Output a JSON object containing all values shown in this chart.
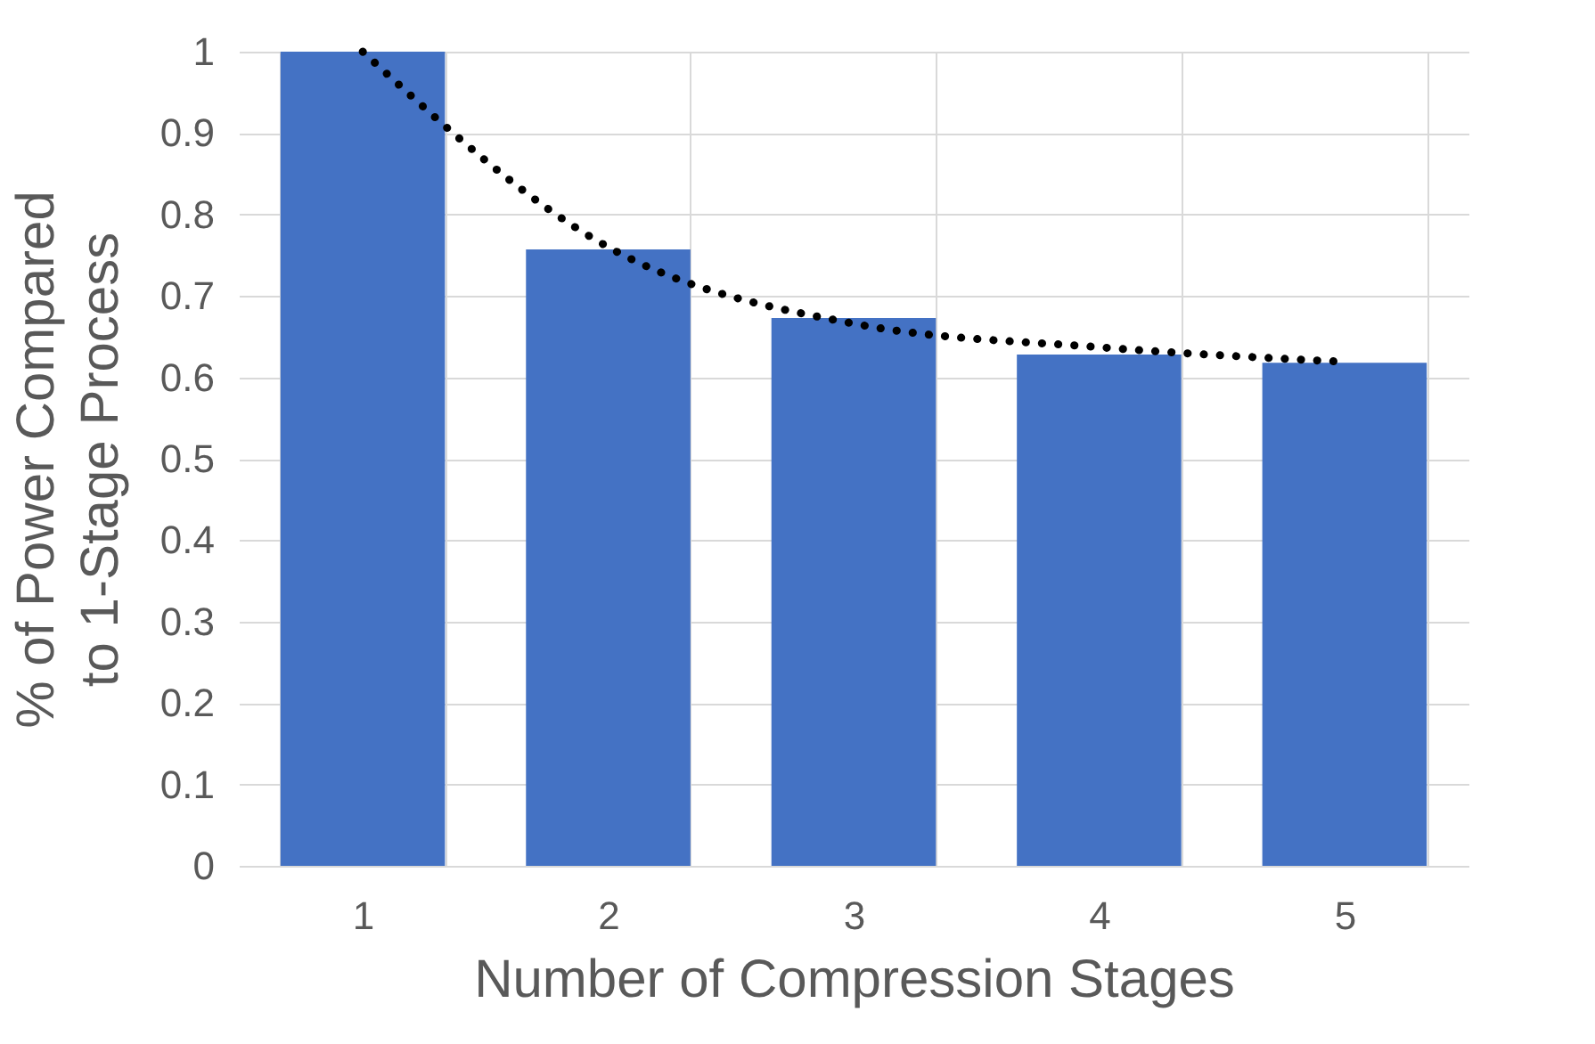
{
  "chart_data": {
    "type": "bar",
    "categories": [
      "1",
      "2",
      "3",
      "4",
      "5"
    ],
    "xlabel": "Number of Compression Stages",
    "ylabel": "% of  Power Compared\nto 1-Stage Process",
    "series": [
      {
        "color": "#4472c4",
        "values": [
          1,
          0.757,
          0.673,
          0.628,
          0.618
        ]
      },
      {
        "type": "line",
        "color": "#000000",
        "line_style": "dotted",
        "x": [
          "1",
          "2",
          "3",
          "4",
          "5"
        ],
        "values": [
          1,
          0.76,
          0.666,
          0.637,
          0.619
        ]
      }
    ],
    "ylim": [
      0,
      1
    ],
    "yticks": [
      0,
      0.1,
      0.2,
      0.3,
      0.4,
      0.5,
      0.6,
      0.7,
      0.8,
      0.9,
      1
    ],
    "grid": true
  }
}
